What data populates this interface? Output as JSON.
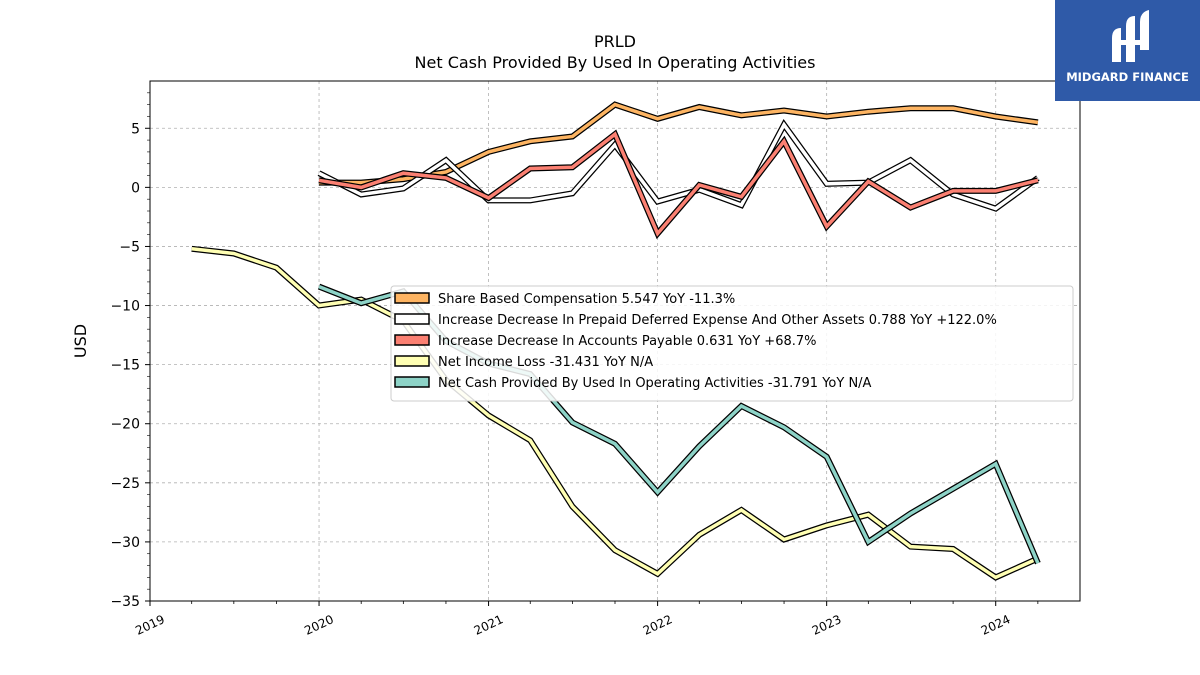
{
  "chart_data": {
    "type": "line",
    "title": "PRLD",
    "subtitle": "Net Cash Provided By Used In Operating Activities",
    "ylabel": "USD",
    "xlabel": "",
    "ylim": [
      -35,
      9
    ],
    "xlim": [
      "2019-01-01",
      "2024-07-01"
    ],
    "y_ticks": [
      5,
      0,
      -5,
      -10,
      -15,
      -20,
      -25,
      -30,
      -35
    ],
    "y_tick_labels": [
      "5",
      "0",
      "−5",
      "−10",
      "−15",
      "−20",
      "−25",
      "−30",
      "−35"
    ],
    "x_ticks": [
      "2019-01-01",
      "2020-01-01",
      "2021-01-01",
      "2022-01-01",
      "2023-01-01",
      "2024-01-01"
    ],
    "x_tick_labels": [
      "2019",
      "2020",
      "2021",
      "2022",
      "2023",
      "2024"
    ],
    "grid": true,
    "legend_position": "center-right",
    "series": [
      {
        "name": "Share Based Compensation",
        "legend": "Share Based Compensation  5.547 YoY -11.3%",
        "color": "#fdb462",
        "x": [
          "2020-01-01",
          "2020-04-01",
          "2020-07-01",
          "2020-10-01",
          "2021-01-01",
          "2021-04-01",
          "2021-07-01",
          "2021-10-01",
          "2022-01-01",
          "2022-04-01",
          "2022-07-01",
          "2022-10-01",
          "2023-01-01",
          "2023-04-01",
          "2023-07-01",
          "2023-10-01",
          "2024-01-01",
          "2024-04-01"
        ],
        "y": [
          0.4,
          0.4,
          0.7,
          1.3,
          3.0,
          3.9,
          4.3,
          7.0,
          5.8,
          6.8,
          6.1,
          6.5,
          6.0,
          6.4,
          6.7,
          6.7,
          6.0,
          5.5
        ]
      },
      {
        "name": "Increase Decrease In Prepaid Deferred Expense And Other Assets",
        "legend": "Increase Decrease In Prepaid Deferred Expense And Other Assets  0.788 YoY +122.0%",
        "color": "#ffffff",
        "x": [
          "2020-01-01",
          "2020-04-01",
          "2020-07-01",
          "2020-10-01",
          "2021-01-01",
          "2021-04-01",
          "2021-07-01",
          "2021-10-01",
          "2022-01-01",
          "2022-04-01",
          "2022-07-01",
          "2022-10-01",
          "2023-01-01",
          "2023-04-01",
          "2023-07-01",
          "2023-10-01",
          "2024-01-01",
          "2024-04-01"
        ],
        "y": [
          1.2,
          -0.6,
          -0.1,
          2.3,
          -1.1,
          -1.1,
          -0.5,
          3.6,
          -1.2,
          -0.2,
          -1.5,
          5.3,
          0.3,
          0.4,
          2.3,
          -0.6,
          -1.8,
          0.8
        ]
      },
      {
        "name": "Increase Decrease In Accounts Payable",
        "legend": "Increase Decrease In Accounts Payable  0.631 YoY +68.7%",
        "color": "#fb8072",
        "x": [
          "2020-01-01",
          "2020-04-01",
          "2020-07-01",
          "2020-10-01",
          "2021-01-01",
          "2021-04-01",
          "2021-07-01",
          "2021-10-01",
          "2022-01-01",
          "2022-04-01",
          "2022-07-01",
          "2022-10-01",
          "2023-01-01",
          "2023-04-01",
          "2023-07-01",
          "2023-10-01",
          "2024-01-01",
          "2024-04-01"
        ],
        "y": [
          0.6,
          0.0,
          1.2,
          0.8,
          -0.9,
          1.6,
          1.7,
          4.5,
          -3.9,
          0.2,
          -0.8,
          3.9,
          -3.3,
          0.5,
          -1.7,
          -0.3,
          -0.3,
          0.6
        ]
      },
      {
        "name": "Net Income Loss",
        "legend": "Net Income Loss  -31.431 YoY N/A",
        "color": "#ffffb3",
        "x": [
          "2019-04-01",
          "2019-07-01",
          "2019-10-01",
          "2020-01-01",
          "2020-04-01",
          "2020-07-01",
          "2020-10-01",
          "2021-01-01",
          "2021-04-01",
          "2021-07-01",
          "2021-10-01",
          "2022-01-01",
          "2022-04-01",
          "2022-07-01",
          "2022-10-01",
          "2023-01-01",
          "2023-04-01",
          "2023-07-01",
          "2023-10-01",
          "2024-01-01",
          "2024-04-01"
        ],
        "y": [
          -5.2,
          -5.6,
          -6.8,
          -10.0,
          -9.5,
          -11.3,
          -16.3,
          -19.3,
          -21.4,
          -27.0,
          -30.7,
          -32.7,
          -29.4,
          -27.3,
          -29.8,
          -28.6,
          -27.7,
          -30.4,
          -30.6,
          -33.0,
          -31.4
        ]
      },
      {
        "name": "Net Cash Provided By Used In Operating Activities",
        "legend": "Net Cash Provided By Used In Operating Activities  -31.791 YoY N/A",
        "color": "#8dd3c7",
        "x": [
          "2020-01-01",
          "2020-04-01",
          "2020-07-01",
          "2020-10-01",
          "2021-01-01",
          "2021-04-01",
          "2021-07-01",
          "2021-10-01",
          "2022-01-01",
          "2022-04-01",
          "2022-07-01",
          "2022-10-01",
          "2023-01-01",
          "2023-04-01",
          "2023-07-01",
          "2023-10-01",
          "2024-01-01",
          "2024-04-01"
        ],
        "y": [
          -8.4,
          -9.8,
          -8.8,
          -13.0,
          -14.9,
          -15.8,
          -19.9,
          -21.7,
          -25.8,
          -21.9,
          -18.5,
          -20.3,
          -22.8,
          -30.0,
          -27.6,
          -25.5,
          -23.4,
          -31.8
        ]
      }
    ]
  },
  "brand": {
    "logo_text": "MIDGARD FINANCE",
    "logo_color": "#2f5aa8"
  }
}
